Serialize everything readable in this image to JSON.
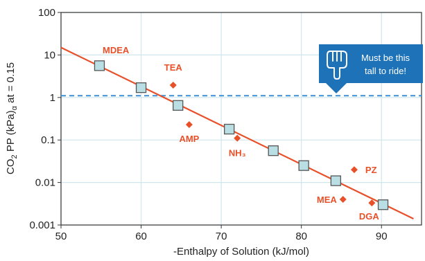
{
  "chart_data": {
    "type": "scatter",
    "xlabel": "-Enthalpy of Solution (kJ/mol)",
    "ylabel": {
      "prefix": "CO",
      "sub1": "2",
      "mid": " PP (kPa)",
      "sub2": "α",
      "suffix": " at = 0.15"
    },
    "xlim": [
      50,
      95
    ],
    "ylim": [
      0.001,
      100
    ],
    "y_scale": "log",
    "grid": true,
    "x_ticks": [
      "50",
      "60",
      "70",
      "80",
      "90"
    ],
    "y_ticks": [
      "0.001",
      "0.01",
      "0.1",
      "1",
      "10",
      "100"
    ],
    "trend_line": {
      "x": [
        50,
        94
      ],
      "y": [
        15,
        0.0014
      ]
    },
    "threshold": {
      "y": 1.1,
      "color": "#3a8fd6"
    },
    "square_series": {
      "x": [
        54.8,
        60.0,
        64.6,
        71.0,
        76.5,
        80.3,
        84.3,
        90.2
      ],
      "y": [
        5.6,
        1.7,
        0.65,
        0.18,
        0.056,
        0.025,
        0.011,
        0.003
      ],
      "color": "#b9dfe5"
    },
    "amines": [
      {
        "label": "MDEA",
        "x": 54.6,
        "y": 5.6,
        "marker": false
      },
      {
        "label": "TEA",
        "x": 64.0,
        "y": 1.95,
        "marker": true
      },
      {
        "label": "AMP",
        "x": 66.0,
        "y": 0.23,
        "marker": true
      },
      {
        "label": "NH₃",
        "x": 72.0,
        "y": 0.11,
        "marker": true
      },
      {
        "label": "PZ",
        "x": 86.6,
        "y": 0.02,
        "marker": true
      },
      {
        "label": "MEA",
        "x": 85.2,
        "y": 0.004,
        "marker": true
      },
      {
        "label": "DGA",
        "x": 88.8,
        "y": 0.0033,
        "marker": true
      }
    ],
    "accent_color": "#e8502a"
  },
  "callout": {
    "line1": "Must be this",
    "line2": "tall to ride!",
    "icon": "pointing-hand-icon",
    "color": "#1d72b8"
  }
}
